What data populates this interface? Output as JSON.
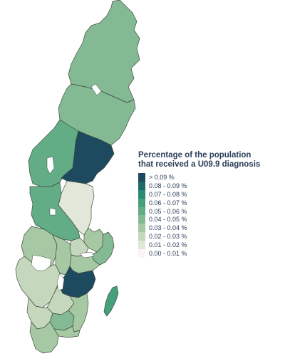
{
  "legend": {
    "title_line1": "Percentage of the population",
    "title_line2": "that received a U09.9 diagnosis",
    "items": [
      {
        "label": "> 0.09 %",
        "color": "#1d4a5e"
      },
      {
        "label": "0.08 - 0.09 %",
        "color": "#1d6b68"
      },
      {
        "label": "0.07 - 0.08 %",
        "color": "#2a8a73"
      },
      {
        "label": "0.06 - 0.07 %",
        "color": "#45a07d"
      },
      {
        "label": "0.05 - 0.06 %",
        "color": "#62ad86"
      },
      {
        "label": "0.04 - 0.05 %",
        "color": "#84ba93"
      },
      {
        "label": "0.03 - 0.04 %",
        "color": "#a6c9a4"
      },
      {
        "label": "0.02 - 0.03 %",
        "color": "#c5d8bd"
      },
      {
        "label": "0.01 - 0.02 %",
        "color": "#e1e7d9"
      },
      {
        "label": "0.00 - 0.01 %",
        "color": "#fdf4f6"
      }
    ]
  },
  "regions": [
    {
      "name": "norrbotten",
      "bin": "0.04 - 0.05 %"
    },
    {
      "name": "vasterbotten",
      "bin": "0.04 - 0.05 %"
    },
    {
      "name": "jamtland",
      "bin": "0.05 - 0.06 %"
    },
    {
      "name": "vasternorrland",
      "bin": "> 0.09 %"
    },
    {
      "name": "gavleborg",
      "bin": "0.01 - 0.02 %"
    },
    {
      "name": "dalarna",
      "bin": "0.05 - 0.06 %"
    },
    {
      "name": "varmland",
      "bin": "0.03 - 0.04 %"
    },
    {
      "name": "orebro",
      "bin": "0.03 - 0.04 %"
    },
    {
      "name": "vastmanland",
      "bin": "0.02 - 0.03 %"
    },
    {
      "name": "uppsala",
      "bin": "0.03 - 0.04 %"
    },
    {
      "name": "stockholm",
      "bin": "0.04 - 0.05 %"
    },
    {
      "name": "sodermanland",
      "bin": "0.03 - 0.04 %"
    },
    {
      "name": "vastra-gotaland",
      "bin": "0.02 - 0.03 %"
    },
    {
      "name": "ostergotland",
      "bin": "> 0.09 %"
    },
    {
      "name": "jonkoping",
      "bin": "0.02 - 0.03 %"
    },
    {
      "name": "halland",
      "bin": "0.02 - 0.03 %"
    },
    {
      "name": "kronoberg",
      "bin": "0.04 - 0.05 %"
    },
    {
      "name": "kalmar",
      "bin": "0.03 - 0.04 %"
    },
    {
      "name": "blekinge",
      "bin": "0.03 - 0.04 %"
    },
    {
      "name": "skane",
      "bin": "0.03 - 0.04 %"
    },
    {
      "name": "gotland",
      "bin": "0.06 - 0.07 %"
    }
  ]
}
